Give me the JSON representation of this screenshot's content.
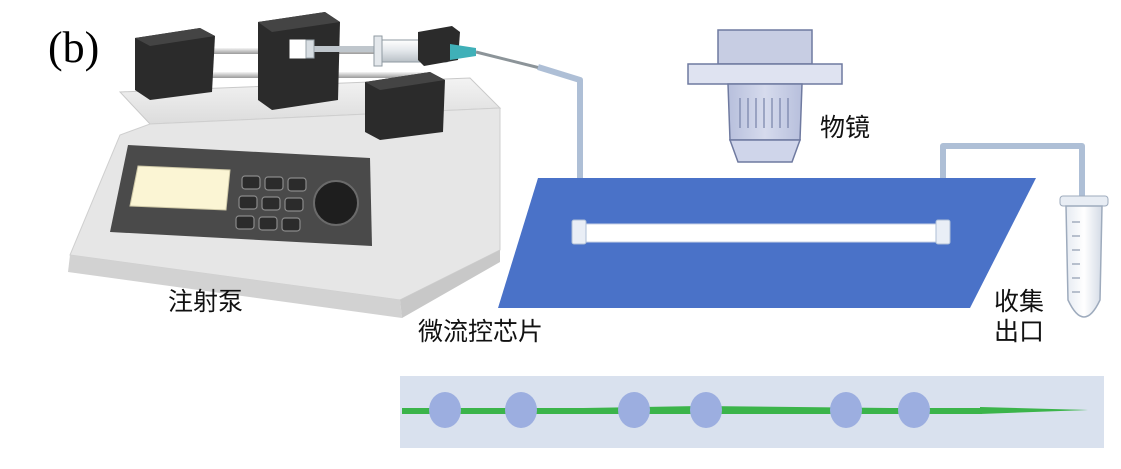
{
  "panel_label": "(b)",
  "labels": {
    "syringe_pump": "注射泵",
    "objective": "物镜",
    "microfluidic_chip": "微流控芯片",
    "collection_outlet_line1": "收集",
    "collection_outlet_line2": "出口"
  },
  "droplet_inset": {
    "droplet_count": 6
  },
  "colors": {
    "chip": "#4a72c8",
    "channel": "#ffffff",
    "tubing": "#aebfd6",
    "pump_body": "#ececec",
    "pump_panel": "#4a4a4a",
    "display": "#fbf5d4",
    "clamp": "#2b2b2b",
    "objective": "#c7cde3",
    "stream": "#3bb44a",
    "droplet": "#9caee0",
    "inset_bg": "#d9e1ee"
  }
}
